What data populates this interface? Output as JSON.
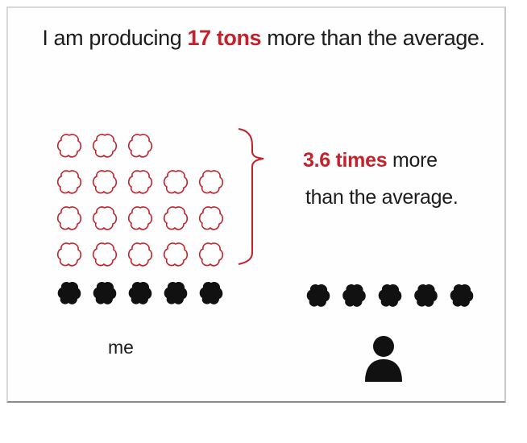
{
  "headline": {
    "prefix": "I am producing ",
    "highlight": "17 tons",
    "suffix": " more than the average."
  },
  "comparison": {
    "highlight": "3.6 times",
    "rest_line1": " more",
    "line2": "than the average."
  },
  "me_label": "me",
  "colors": {
    "accent": "#c2222b",
    "dark": "#111111",
    "text": "#1c1c1c"
  },
  "icons": {
    "extra_cloud": "cloud-outline-icon",
    "average_cloud": "cloud-solid-icon",
    "person": "person-icon"
  },
  "chart_data": {
    "type": "pictogram",
    "groups": [
      {
        "name": "me",
        "outline_icons": [
          3,
          5,
          5,
          5
        ],
        "solid_icons": 5
      },
      {
        "name": "average",
        "outline_icons": [],
        "solid_icons": 5
      }
    ]
  }
}
